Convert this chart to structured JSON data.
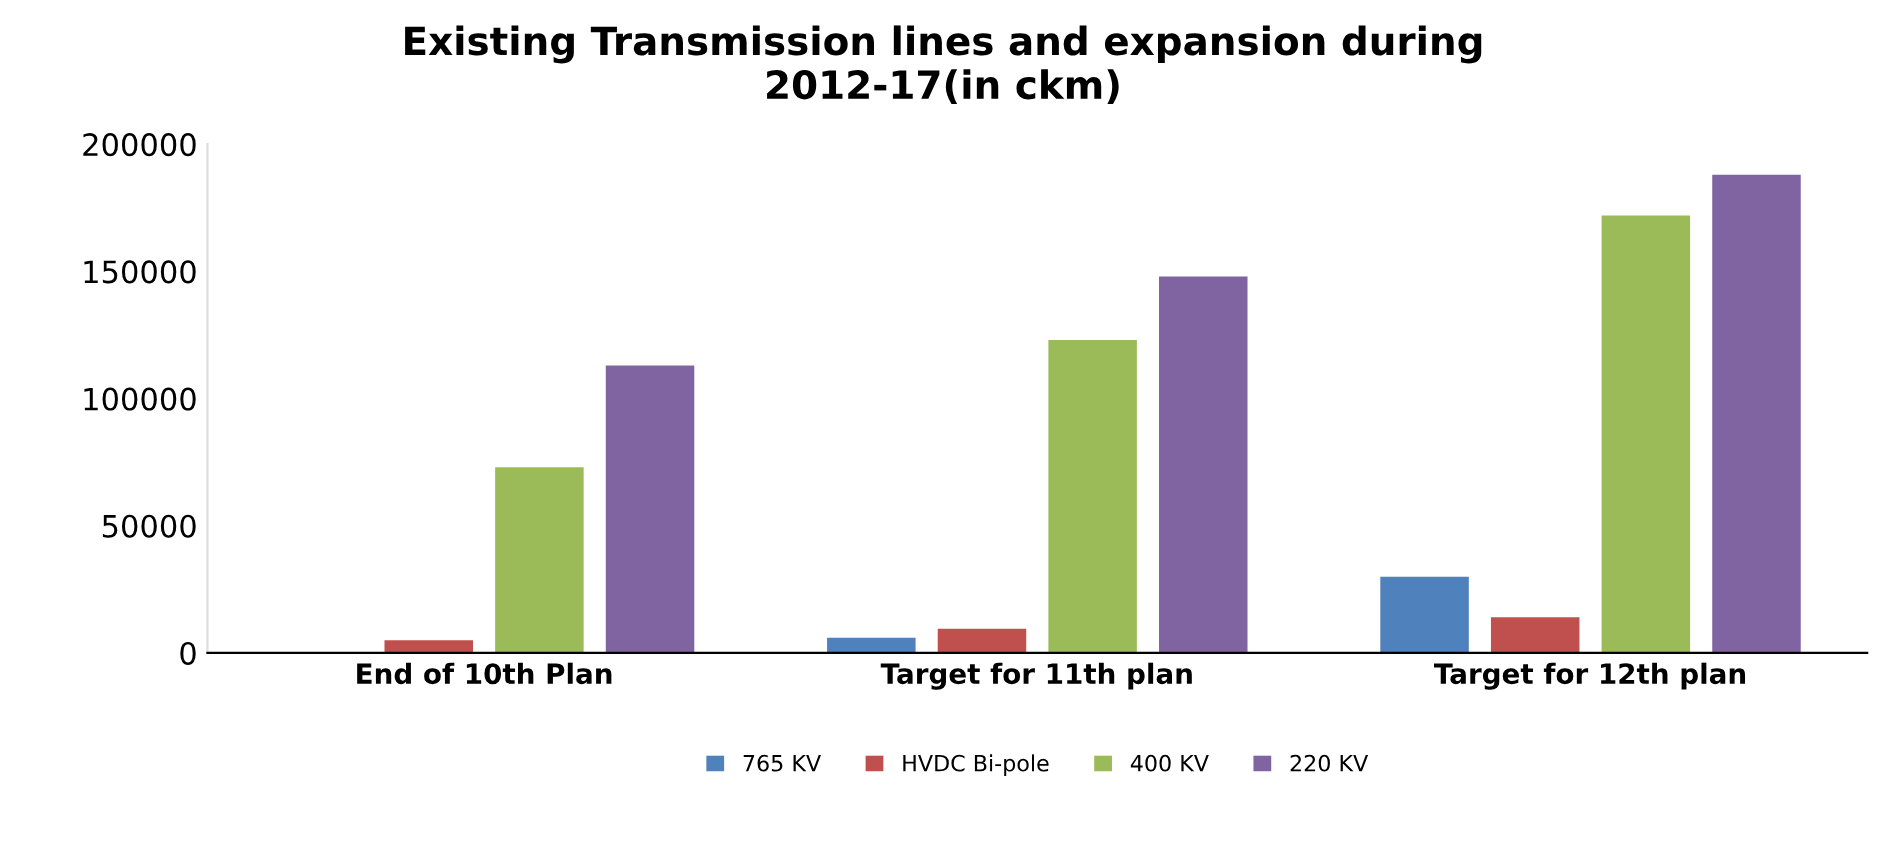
{
  "chart_data": {
    "type": "bar",
    "title": "Existing Transmission lines and expansion during\n2012-17(in ckm)",
    "categories": [
      "End of 10th Plan",
      "Target for 11th plan",
      "Target for 12th plan"
    ],
    "series": [
      {
        "name": "765 KV",
        "color": "#4f81bd",
        "values": [
          0,
          6000,
          30000
        ]
      },
      {
        "name": "HVDC Bi-pole",
        "color": "#c0504d",
        "values": [
          5000,
          9500,
          14000
        ]
      },
      {
        "name": "400 KV",
        "color": "#9bbb59",
        "values": [
          73000,
          123000,
          172000
        ]
      },
      {
        "name": "220 KV",
        "color": "#8064a2",
        "values": [
          113000,
          148000,
          188000
        ]
      }
    ],
    "ylim": [
      0,
      200000
    ],
    "yticks": [
      0,
      50000,
      100000,
      150000,
      200000
    ],
    "grid": false,
    "legend": "bottom"
  }
}
